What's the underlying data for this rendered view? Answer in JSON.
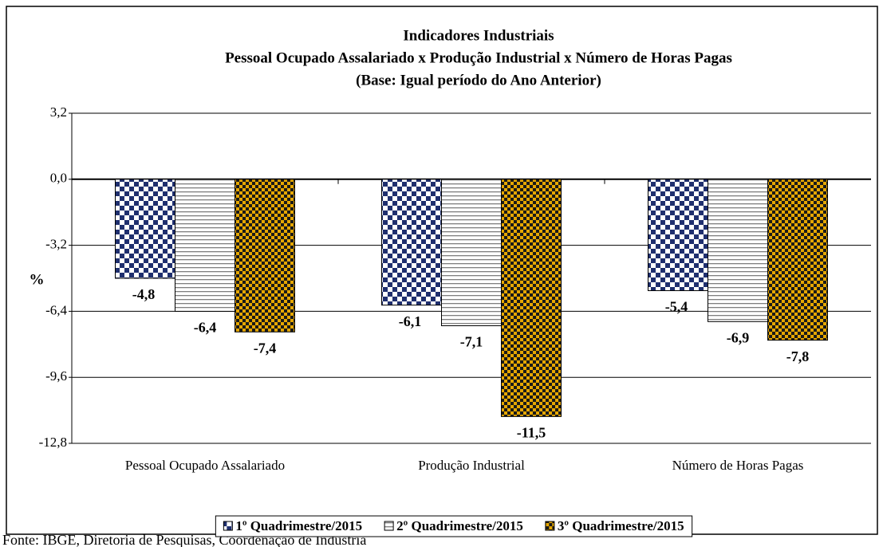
{
  "chart_data": {
    "type": "bar",
    "title": "Indicadores Industriais",
    "subtitle": "Pessoal Ocupado  Assalariado x Produção Industrial x Número de Horas Pagas",
    "subtitle2": "(Base: Igual período do Ano Anterior)",
    "y_label": "%",
    "categories": [
      "Pessoal Ocupado Assalariado",
      "Produção Industrial",
      "Número de Horas Pagas"
    ],
    "series": [
      {
        "name": "1º Quadrimestre/2015",
        "color": "#1f2f6e",
        "values": [
          -4.8,
          -6.1,
          -5.4
        ],
        "value_labels": [
          "-4,8",
          "-6,1",
          "-5,4"
        ]
      },
      {
        "name": "2º Quadrimestre/2015",
        "color": "#7f7f7f",
        "values": [
          -6.4,
          -7.1,
          -6.9
        ],
        "value_labels": [
          "-6,4",
          "-7,1",
          "-6,9"
        ]
      },
      {
        "name": "3º Quadrimestre/2015",
        "color": "#e6a700",
        "values": [
          -7.4,
          -11.5,
          -7.8
        ],
        "value_labels": [
          "-7,4",
          "-11,5",
          "-7,8"
        ]
      }
    ],
    "ylim": [
      -12.8,
      3.2
    ],
    "yticks": [
      {
        "value": -12.8,
        "label": "-12,8"
      },
      {
        "value": -9.6,
        "label": "-9,6"
      },
      {
        "value": -6.4,
        "label": "-6,4"
      },
      {
        "value": -3.2,
        "label": "-3,2"
      },
      {
        "value": 0,
        "label": "0,0"
      },
      {
        "value": 3.2,
        "label": "3,2"
      }
    ],
    "grid": true,
    "legend": "bottom",
    "source": "Fonte: IBGE, Diretoria de Pesquisas, Coordenação de Indústria"
  }
}
